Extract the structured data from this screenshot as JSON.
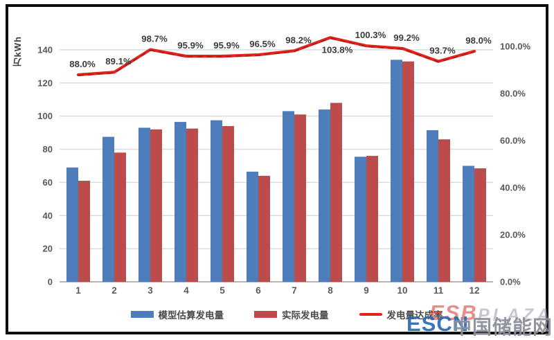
{
  "chart_data": {
    "type": "bar+line combo",
    "title": "",
    "y_axis_title": "万kWh",
    "categories": [
      "1",
      "2",
      "3",
      "4",
      "5",
      "6",
      "7",
      "8",
      "9",
      "10",
      "11",
      "12"
    ],
    "series": [
      {
        "name": "模型估算发电量",
        "type": "bar",
        "axis": "left",
        "color": "#4d7dba",
        "values": [
          69,
          87.5,
          93,
          96.5,
          97.5,
          66.5,
          103,
          104,
          75.5,
          134,
          91.5,
          70
        ]
      },
      {
        "name": "实际发电量",
        "type": "bar",
        "axis": "left",
        "color": "#bc4c4b",
        "values": [
          61,
          78,
          92,
          92.5,
          94,
          64,
          101,
          108,
          76,
          133,
          86,
          68.5
        ]
      },
      {
        "name": "发电量达成率",
        "type": "line",
        "axis": "right",
        "color": "#e4231b",
        "values": [
          88.0,
          89.1,
          98.7,
          95.9,
          95.9,
          96.5,
          98.2,
          103.8,
          100.3,
          99.2,
          93.7,
          98.0
        ],
        "point_labels": [
          "88.0%",
          "89.1%",
          "98.7%",
          "95.9%",
          "95.9%",
          "96.5%",
          "98.2%",
          "103.8%",
          "100.3%",
          "99.2%",
          "93.7%",
          "98.0%"
        ]
      }
    ],
    "left_axis": {
      "tick_labels": [
        "0",
        "20",
        "40",
        "60",
        "80",
        "100",
        "120",
        "140"
      ],
      "ticks": [
        0,
        20,
        40,
        60,
        80,
        100,
        120,
        140
      ],
      "unit": "万kWh"
    },
    "right_axis": {
      "tick_labels": [
        "0.0%",
        "20.0%",
        "40.0%",
        "60.0%",
        "80.0%",
        "100.0%"
      ],
      "ticks": [
        0,
        20,
        40,
        60,
        80,
        100
      ]
    },
    "grid": true,
    "legend_position": "bottom",
    "colors": {
      "grid": "#d9d9d9",
      "baseline": "#9e9e9e",
      "tick_text": "#595959",
      "point_label_text": "#3b3b3b",
      "line_dash_overlay": "#8f1f18"
    }
  },
  "watermark": {
    "logo_red": "ESB",
    "logo_gray": "PLAZA",
    "escn": "ESCN",
    "site_name": "中国储能网"
  }
}
